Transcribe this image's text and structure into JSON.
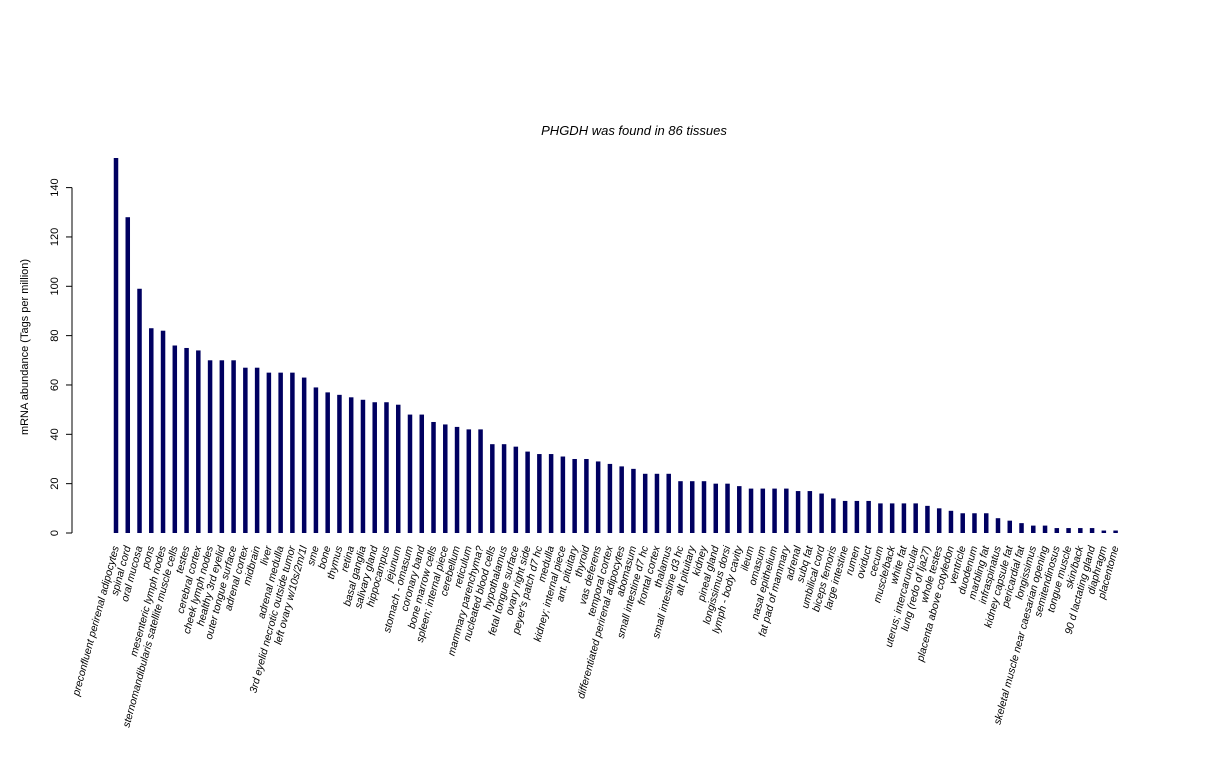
{
  "chart_data": {
    "type": "bar",
    "title": "PHGDH  was found in  86  tissues",
    "xlabel": "",
    "ylabel": "mRNA abundance (Tags per million)",
    "ylim": [
      0,
      152
    ],
    "yticks": [
      0,
      20,
      40,
      60,
      80,
      100,
      120,
      140
    ],
    "grid": false,
    "bar_color": "#000060",
    "categories": [
      "preconfluent perirenal adipocytes",
      "spinal cord",
      "oral mucosa",
      "pons",
      "mesenteric lymph nodes",
      "sternomandibularis satellite muscle cells",
      "testes",
      "cerebral cortex",
      "cheek lymph nodes",
      "healthy 3rd eyelid",
      "outer tongue surface",
      "adrenal cortex",
      "midbrain",
      "liver",
      "adrenal medulla",
      "3rd eyelid necrotic outside tumor",
      "left ovary w/10s/2m/1l",
      "sme",
      "bone",
      "thymus",
      "retina",
      "basal ganglia",
      "salivary gland",
      "hippocampus",
      "jejunum",
      "stomach - omasum",
      "coronary band",
      "bone marrow cells",
      "spleen; internal piece",
      "cerebellum",
      "reticulum",
      "mammary parenchyma?",
      "nucleated blood cells",
      "hypothalamus",
      "fetal tongue surface",
      "ovary right side",
      "peyer's patch d7 hc",
      "medulla",
      "kidney; internal piece",
      "ant. pituitary",
      "thyroid",
      "vas deferens",
      "temporal cortex",
      "differentiated perirenal adipocytes",
      "abomasum",
      "small intestine d7 hc",
      "frontal cortex",
      "thalamus",
      "small intestine d3 hc",
      "alt pituitary",
      "kidney",
      "pineal gland",
      "longissimus dorsi",
      "lymph - body cavity",
      "ileum",
      "omasum",
      "nasal epithelium",
      "fat pad of mammary",
      "adrenal",
      "subq fat",
      "umbilical cord",
      "biceps femoris",
      "large intestine",
      "rumen",
      "oviduct",
      "cecum",
      "muscle/back",
      "white fat",
      "uterus; intercaruncular",
      "lung (redo of lja27)",
      "whole testes",
      "placenta above cotyledon",
      "ventricle",
      "duodenum",
      "marbling fat",
      "infraspinatus",
      "kidney capsule fat",
      "pericardial fat",
      "longissimus",
      "skeletal muscle near caesarian opening",
      "semitendinosus",
      "tongue muscle",
      "skin/back",
      "90 d lactating gland",
      "diaphragm",
      "placentome"
    ],
    "values": [
      152,
      128,
      99,
      83,
      82,
      76,
      75,
      74,
      70,
      70,
      70,
      67,
      67,
      65,
      65,
      65,
      63,
      59,
      57,
      56,
      55,
      54,
      53,
      53,
      52,
      48,
      48,
      45,
      44,
      43,
      42,
      42,
      36,
      36,
      35,
      33,
      32,
      32,
      31,
      30,
      30,
      29,
      28,
      27,
      26,
      24,
      24,
      24,
      21,
      21,
      21,
      20,
      20,
      19,
      18,
      18,
      18,
      18,
      17,
      17,
      16,
      14,
      13,
      13,
      13,
      12,
      12,
      12,
      12,
      11,
      10,
      9,
      8,
      8,
      8,
      6,
      5,
      4,
      3,
      3,
      2,
      2,
      2,
      2,
      1,
      1
    ]
  }
}
